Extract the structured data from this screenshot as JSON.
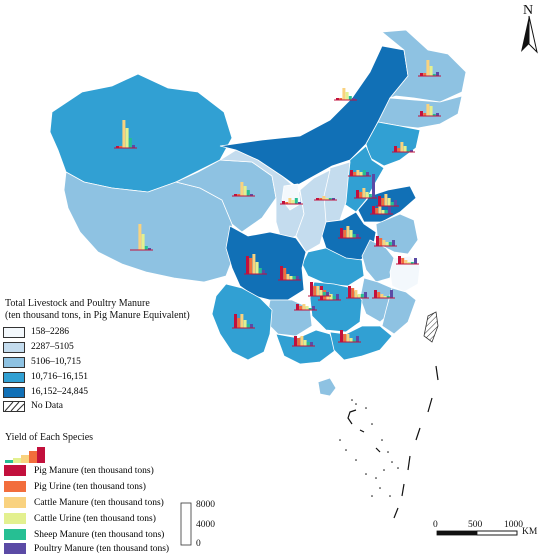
{
  "north_label": "N",
  "legend": {
    "title_line1": "Total Livestock and Poultry Manure",
    "title_line2": "(ten thousand tons, in Pig Manure Equivalent)",
    "classes": [
      {
        "label": "158–2286",
        "color": "#f3f8fc"
      },
      {
        "label": "2287–5105",
        "color": "#c4dcee"
      },
      {
        "label": "5106–10,715",
        "color": "#8ec2e2"
      },
      {
        "label": "10,716–16,151",
        "color": "#31a0d3"
      },
      {
        "label": "16,152–24,845",
        "color": "#1170b6"
      }
    ],
    "no_data": "No Data"
  },
  "species_legend": {
    "title": "Yield of Each Species",
    "items": [
      {
        "label": "Pig Manure (ten thousand tons)",
        "color": "#c2103c"
      },
      {
        "label": "Pig Urine (ten thousand tons)",
        "color": "#f26d3c"
      },
      {
        "label": "Cattle Manure (ten thousand tons)",
        "color": "#f9d27f"
      },
      {
        "label": "Cattle Urine (ten thousand tons)",
        "color": "#e3f08f"
      },
      {
        "label": "Sheep Manure (ten thousand tons)",
        "color": "#26bf93"
      },
      {
        "label": "Poultry Manure (ten thousand tons)",
        "color": "#5b4aa5"
      }
    ],
    "scale_values": [
      "8000",
      "4000",
      "0"
    ]
  },
  "scale_bar": {
    "ticks": [
      "0",
      "500",
      "1000"
    ],
    "unit": "KM"
  }
}
